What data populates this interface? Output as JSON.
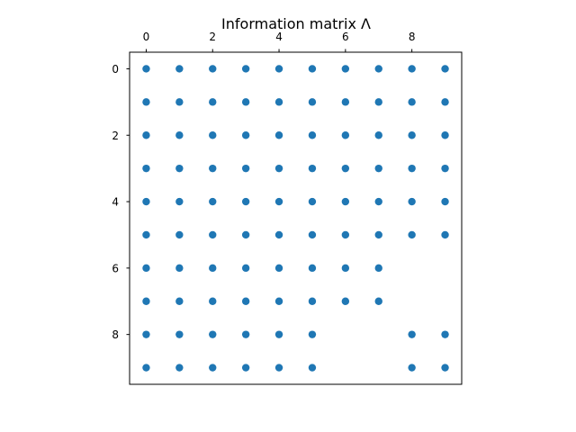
{
  "chart_data": {
    "type": "scatter",
    "title": "Information matrix Λ",
    "xlabel": "",
    "ylabel": "",
    "x_ticks": [
      "0",
      "2",
      "4",
      "6",
      "8"
    ],
    "y_ticks": [
      "0",
      "2",
      "4",
      "6",
      "8"
    ],
    "x_tick_values": [
      0,
      2,
      4,
      6,
      8
    ],
    "y_tick_values": [
      0,
      2,
      4,
      6,
      8
    ],
    "xlim": [
      -0.5,
      9.5
    ],
    "ylim": [
      9.5,
      -0.5
    ],
    "x_axis_position": "top",
    "y_axis_inverted": true,
    "grid": false,
    "marker_color": "#1f77b4",
    "points": [
      [
        0,
        0
      ],
      [
        1,
        0
      ],
      [
        2,
        0
      ],
      [
        3,
        0
      ],
      [
        4,
        0
      ],
      [
        5,
        0
      ],
      [
        6,
        0
      ],
      [
        7,
        0
      ],
      [
        8,
        0
      ],
      [
        9,
        0
      ],
      [
        0,
        1
      ],
      [
        1,
        1
      ],
      [
        2,
        1
      ],
      [
        3,
        1
      ],
      [
        4,
        1
      ],
      [
        5,
        1
      ],
      [
        6,
        1
      ],
      [
        7,
        1
      ],
      [
        8,
        1
      ],
      [
        9,
        1
      ],
      [
        0,
        2
      ],
      [
        1,
        2
      ],
      [
        2,
        2
      ],
      [
        3,
        2
      ],
      [
        4,
        2
      ],
      [
        5,
        2
      ],
      [
        6,
        2
      ],
      [
        7,
        2
      ],
      [
        8,
        2
      ],
      [
        9,
        2
      ],
      [
        0,
        3
      ],
      [
        1,
        3
      ],
      [
        2,
        3
      ],
      [
        3,
        3
      ],
      [
        4,
        3
      ],
      [
        5,
        3
      ],
      [
        6,
        3
      ],
      [
        7,
        3
      ],
      [
        8,
        3
      ],
      [
        9,
        3
      ],
      [
        0,
        4
      ],
      [
        1,
        4
      ],
      [
        2,
        4
      ],
      [
        3,
        4
      ],
      [
        4,
        4
      ],
      [
        5,
        4
      ],
      [
        6,
        4
      ],
      [
        7,
        4
      ],
      [
        8,
        4
      ],
      [
        9,
        4
      ],
      [
        0,
        5
      ],
      [
        1,
        5
      ],
      [
        2,
        5
      ],
      [
        3,
        5
      ],
      [
        4,
        5
      ],
      [
        5,
        5
      ],
      [
        6,
        5
      ],
      [
        7,
        5
      ],
      [
        8,
        5
      ],
      [
        9,
        5
      ],
      [
        0,
        6
      ],
      [
        1,
        6
      ],
      [
        2,
        6
      ],
      [
        3,
        6
      ],
      [
        4,
        6
      ],
      [
        5,
        6
      ],
      [
        6,
        6
      ],
      [
        7,
        6
      ],
      [
        0,
        7
      ],
      [
        1,
        7
      ],
      [
        2,
        7
      ],
      [
        3,
        7
      ],
      [
        4,
        7
      ],
      [
        5,
        7
      ],
      [
        6,
        7
      ],
      [
        7,
        7
      ],
      [
        0,
        8
      ],
      [
        1,
        8
      ],
      [
        2,
        8
      ],
      [
        3,
        8
      ],
      [
        4,
        8
      ],
      [
        5,
        8
      ],
      [
        8,
        8
      ],
      [
        9,
        8
      ],
      [
        0,
        9
      ],
      [
        1,
        9
      ],
      [
        2,
        9
      ],
      [
        3,
        9
      ],
      [
        4,
        9
      ],
      [
        5,
        9
      ],
      [
        8,
        9
      ],
      [
        9,
        9
      ]
    ]
  }
}
